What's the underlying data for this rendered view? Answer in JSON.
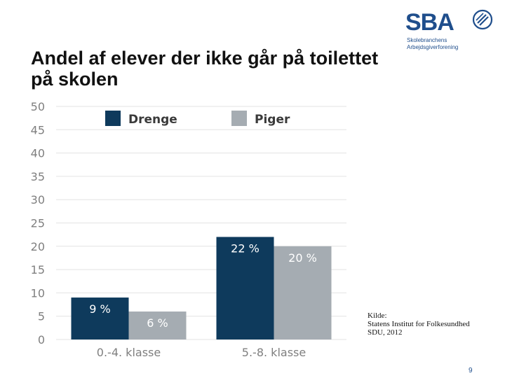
{
  "slide": {
    "title": "Andel af elever der ikke går på toilettet på skolen",
    "page_number": "9"
  },
  "logo": {
    "word": "SBA",
    "subtitle_line1": "Skolebranchens",
    "subtitle_line2": "Arbejdsgiverforening",
    "mark_icon": "pencil-circle-icon"
  },
  "source": {
    "line1": "Kilde:",
    "line2": "Statens Institut for Folkesundhed",
    "line3": "SDU, 2012"
  },
  "colors": {
    "drenge": "#0e3a5c",
    "piger": "#a5acb2",
    "grid": "#e3e3e3",
    "axis_text": "#7f7f7f",
    "label_on_dark": "#ffffff",
    "label_on_light": "#ffffff"
  },
  "chart_data": {
    "type": "bar",
    "title": "Andel af elever der ikke går på toilettet på skolen",
    "xlabel": "",
    "ylabel": "",
    "categories": [
      "0.-4. klasse",
      "5.-8. klasse"
    ],
    "series": [
      {
        "name": "Drenge",
        "values": [
          9,
          22
        ],
        "labels": [
          "9 %",
          "22 %"
        ]
      },
      {
        "name": "Piger",
        "values": [
          6,
          20
        ],
        "labels": [
          "6 %",
          "20 %"
        ]
      }
    ],
    "ylim": [
      0,
      50
    ],
    "yticks": [
      0,
      5,
      10,
      15,
      20,
      25,
      30,
      35,
      40,
      45,
      50
    ],
    "grid": true,
    "legend": "top"
  }
}
